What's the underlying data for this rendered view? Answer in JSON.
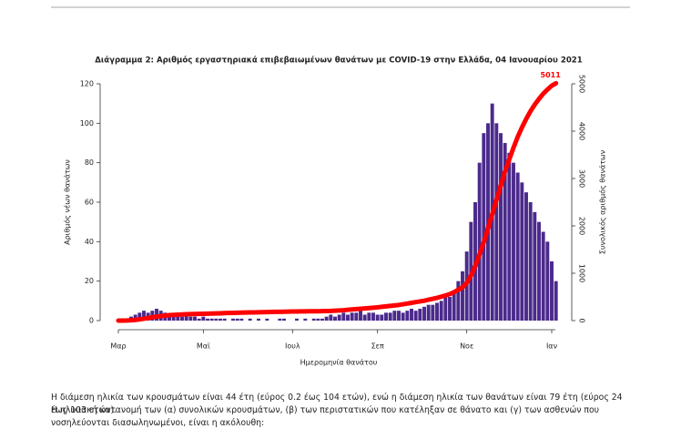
{
  "chart_data": {
    "type": "bar",
    "title": "Διάγραμμα 2: Αριθμός εργαστηριακά επιβεβαιωμένων θανάτων με COVID-19 στην Ελλάδα, 04 Ιανουαρίου 2021",
    "x_label": "Ημερομηνία θανάτου",
    "y_label": "Αριθμός νέων θανάτων",
    "y2_label": "Συνολικός αριθμός θανάτων",
    "categories": [
      "Μαρ",
      null,
      null,
      null,
      null,
      null,
      null,
      null,
      null,
      null,
      null,
      null,
      null,
      null,
      null,
      null,
      null,
      null,
      null,
      null,
      "Μαϊ",
      null,
      null,
      null,
      null,
      null,
      null,
      null,
      null,
      null,
      null,
      null,
      null,
      null,
      null,
      null,
      null,
      null,
      null,
      null,
      null,
      "Ιουλ",
      null,
      null,
      null,
      null,
      null,
      null,
      null,
      null,
      null,
      null,
      null,
      null,
      null,
      null,
      null,
      null,
      null,
      null,
      null,
      "Σεπ",
      null,
      null,
      null,
      null,
      null,
      null,
      null,
      null,
      null,
      null,
      null,
      null,
      null,
      null,
      null,
      null,
      null,
      null,
      null,
      null,
      "Νοε",
      null,
      null,
      null,
      null,
      null,
      null,
      null,
      null,
      null,
      null,
      null,
      null,
      null,
      null,
      null,
      null,
      null,
      null,
      null,
      "Ιαν",
      null
    ],
    "series": [
      {
        "type": "bar",
        "color": "#4b2a8c",
        "values": [
          0,
          0,
          1,
          2,
          3,
          4,
          5,
          4,
          5,
          6,
          5,
          4,
          3,
          3,
          2,
          2,
          3,
          2,
          2,
          1,
          2,
          1,
          1,
          1,
          1,
          1,
          0,
          1,
          1,
          1,
          0,
          1,
          0,
          1,
          0,
          1,
          0,
          0,
          1,
          1,
          0,
          0,
          1,
          0,
          1,
          0,
          1,
          1,
          1,
          2,
          3,
          2,
          3,
          4,
          3,
          4,
          4,
          5,
          3,
          4,
          4,
          3,
          3,
          4,
          4,
          5,
          5,
          4,
          5,
          6,
          5,
          6,
          7,
          8,
          8,
          9,
          10,
          12,
          12,
          15,
          20,
          25,
          35,
          50,
          60,
          80,
          95,
          100,
          110,
          100,
          95,
          90,
          85,
          80,
          75,
          70,
          65,
          60,
          55,
          50,
          45,
          40,
          30,
          20
        ]
      },
      {
        "type": "line",
        "axis": "y2",
        "color": "#ff0000",
        "values": [
          0,
          1,
          3,
          8,
          15,
          25,
          40,
          55,
          70,
          85,
          95,
          105,
          115,
          120,
          125,
          130,
          135,
          138,
          140,
          143,
          145,
          147,
          150,
          152,
          155,
          158,
          160,
          163,
          165,
          168,
          170,
          172,
          174,
          176,
          178,
          180,
          182,
          184,
          186,
          188,
          190,
          192,
          193,
          194,
          195,
          196,
          197,
          198,
          200,
          202,
          205,
          210,
          215,
          220,
          228,
          235,
          242,
          250,
          258,
          265,
          272,
          280,
          290,
          300,
          310,
          320,
          330,
          345,
          360,
          375,
          390,
          405,
          420,
          440,
          460,
          480,
          505,
          530,
          560,
          600,
          650,
          700,
          800,
          950,
          1150,
          1400,
          1650,
          1950,
          2250,
          2550,
          2850,
          3150,
          3400,
          3650,
          3880,
          4080,
          4260,
          4420,
          4560,
          4680,
          4790,
          4880,
          4960,
          5011
        ]
      }
    ],
    "ylim": [
      0,
      120
    ],
    "yticks": [
      0,
      20,
      40,
      60,
      80,
      100,
      120
    ],
    "y2lim": [
      0,
      5000
    ],
    "y2ticks": [
      0,
      1000,
      2000,
      3000,
      4000,
      5000
    ]
  },
  "text": {
    "paragraphs": [
      "Η διάμεση ηλικία των κρουσμάτων είναι 44 έτη (εύρος 0.2 έως 104 ετών), ενώ η διάμεση ηλικία των θανάτων είναι 79 έτη (εύρος 24 έως 103 ετών).",
      "Η ηλικιακή κατανομή των (α) συνολικών κρουσμάτων, (β) των περιστατικών που κατέληξαν σε θάνατο και (γ) των ασθενών που νοσηλεύονται διασωληνωμένοι, είναι η ακόλουθη:"
    ]
  }
}
